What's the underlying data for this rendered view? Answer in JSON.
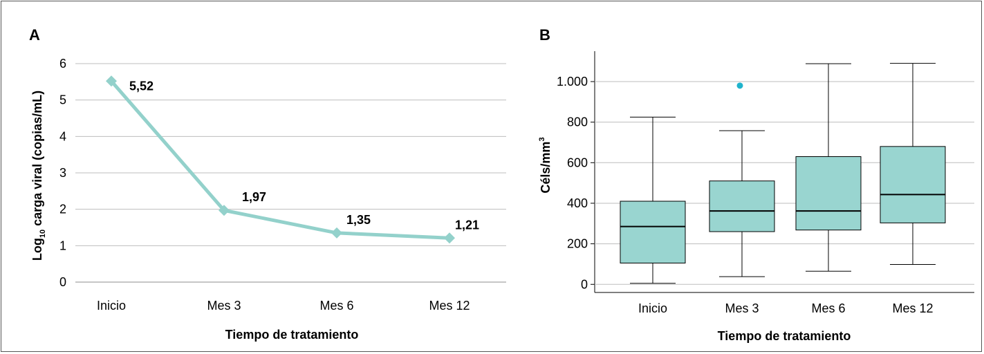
{
  "chart_data": [
    {
      "panel": "A",
      "type": "line",
      "categories": [
        "Inicio",
        "Mes 3",
        "Mes 6",
        "Mes 12"
      ],
      "series": [
        {
          "values": [
            5.52,
            1.97,
            1.35,
            1.21
          ],
          "labels": [
            "5,52",
            "1,97",
            "1,35",
            "1,21"
          ]
        }
      ],
      "ylabel_main": "Log",
      "ylabel_sub": "10",
      "ylabel_rest": " carga viral (copias/mL)",
      "xlabel": "Tiempo de tratamiento",
      "ylim": [
        0,
        6
      ],
      "yticks": [
        0,
        1,
        2,
        3,
        4,
        5,
        6
      ],
      "ytick_labels": [
        "0",
        "1",
        "2",
        "3",
        "4",
        "5",
        "6"
      ],
      "grid": true,
      "color": "#93d1cb"
    },
    {
      "panel": "B",
      "type": "box",
      "categories": [
        "Inicio",
        "Mes 3",
        "Mes 6",
        "Mes 12"
      ],
      "boxes": [
        {
          "min": 5,
          "q1": 105,
          "median": 285,
          "q3": 410,
          "max": 825,
          "outliers": []
        },
        {
          "min": 38,
          "q1": 260,
          "median": 362,
          "q3": 510,
          "max": 758,
          "outliers": [
            980
          ]
        },
        {
          "min": 65,
          "q1": 268,
          "median": 362,
          "q3": 630,
          "max": 1088,
          "outliers": []
        },
        {
          "min": 98,
          "q1": 303,
          "median": 443,
          "q3": 680,
          "max": 1090,
          "outliers": []
        }
      ],
      "ylabel_main": "Céls/mm",
      "ylabel_sup": "3",
      "xlabel": "Tiempo de tratamiento",
      "ylim": [
        -40,
        1150
      ],
      "yticks": [
        0,
        200,
        400,
        600,
        800,
        1000
      ],
      "ytick_labels": [
        "0",
        "200",
        "400",
        "600",
        "800",
        "1.000"
      ],
      "grid": true,
      "box_color": "#99d5d0",
      "outlier_color": "#1fb3cc"
    }
  ]
}
